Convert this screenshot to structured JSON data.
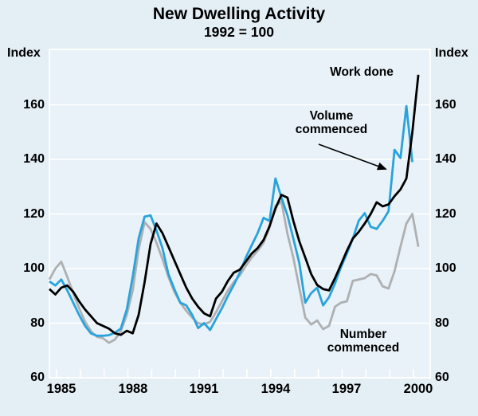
{
  "title": "New Dwelling Activity",
  "subtitle": "1992 = 100",
  "axis": {
    "index_label_left": "Index",
    "index_label_right": "Index",
    "y_tick_labels": [
      "160",
      "140",
      "120",
      "100",
      "80",
      "60"
    ],
    "x_labels": [
      "1985",
      "1988",
      "1991",
      "1994",
      "1997",
      "2000"
    ]
  },
  "annotations": {
    "work_done": "Work done",
    "volume_line1": "Volume",
    "volume_line2": "commenced",
    "number_line1": "Number",
    "number_line2": "commenced"
  },
  "colors": {
    "background": "#e3eef5",
    "plot_background": "#e8f2f8",
    "grid": "#ffffff",
    "text": "#000000",
    "work_done": "#000000",
    "volume_commenced": "#29a3dc",
    "number_commenced": "#aeb0b2"
  },
  "chart_data": {
    "type": "line",
    "title": "New Dwelling Activity",
    "subtitle": "1992 = 100",
    "ylabel": "Index",
    "frequency": "quarterly",
    "x_start_year": 1984.5,
    "x_step_years": 0.25,
    "x_axis_range": [
      1984.5,
      2000.5
    ],
    "x_label_years": [
      1985,
      1988,
      1991,
      1994,
      1997,
      2000
    ],
    "y_axis_range": [
      60,
      180
    ],
    "y_ticks": [
      60,
      80,
      100,
      120,
      140,
      160
    ],
    "y_gridlines": [
      80,
      100,
      120,
      140,
      160
    ],
    "grid": true,
    "legend_position": "inline-annotations",
    "series": [
      {
        "name": "Number commenced",
        "color_key": "number_commenced",
        "values": [
          96,
          100,
          102.5,
          97,
          91,
          85.5,
          80.5,
          77,
          75,
          74.5,
          72.8,
          74,
          77,
          83,
          92,
          107,
          117,
          114.5,
          109.5,
          103.5,
          97,
          91.5,
          87.5,
          84.5,
          82,
          80,
          79.5,
          80.5,
          84,
          88,
          92,
          95,
          97.5,
          101,
          104,
          106.5,
          109.5,
          115,
          123,
          124.5,
          112.8,
          104,
          93,
          82,
          79.5,
          81,
          77.8,
          79,
          86,
          87.5,
          88,
          95.5,
          96,
          96.5,
          98,
          97.5,
          93.5,
          92.7,
          99,
          108,
          116.5,
          120,
          108
        ]
      },
      {
        "name": "Volume commenced",
        "color_key": "volume_commenced",
        "values": [
          95.3,
          93.8,
          96,
          92,
          87.5,
          83,
          79,
          76.2,
          75.4,
          75.4,
          75.6,
          76.5,
          78,
          85,
          97,
          111,
          119,
          119.5,
          114,
          107.5,
          98,
          92.5,
          87.5,
          86.5,
          83,
          78.2,
          80,
          77.5,
          81.5,
          85.5,
          90,
          94,
          98.5,
          104,
          108.5,
          113,
          118.6,
          117.4,
          133,
          126,
          119.5,
          111,
          102,
          87.5,
          91,
          93,
          86.5,
          89.5,
          94.5,
          100.5,
          105.5,
          111,
          117.6,
          120.3,
          115.3,
          114.5,
          117.5,
          121,
          143.5,
          140.5,
          159.5,
          139,
          null
        ]
      },
      {
        "name": "Work done",
        "color_key": "work_done",
        "values": [
          92.5,
          90.5,
          93,
          93.8,
          91.5,
          88,
          85,
          82.5,
          80,
          79,
          78,
          76.3,
          75.7,
          77.2,
          76.3,
          83,
          95,
          109,
          116.5,
          113,
          108,
          103,
          98,
          93,
          89,
          86,
          83.6,
          82.5,
          89,
          91.5,
          95.5,
          98.5,
          99.6,
          102.5,
          105.5,
          107.5,
          110.5,
          115.5,
          122,
          127,
          126,
          117.5,
          110,
          104,
          98,
          94,
          92.5,
          92,
          96.5,
          101.5,
          106.5,
          111,
          113.5,
          116.5,
          120,
          124.3,
          122.8,
          123.5,
          126.5,
          129,
          133,
          150,
          171
        ]
      }
    ]
  }
}
